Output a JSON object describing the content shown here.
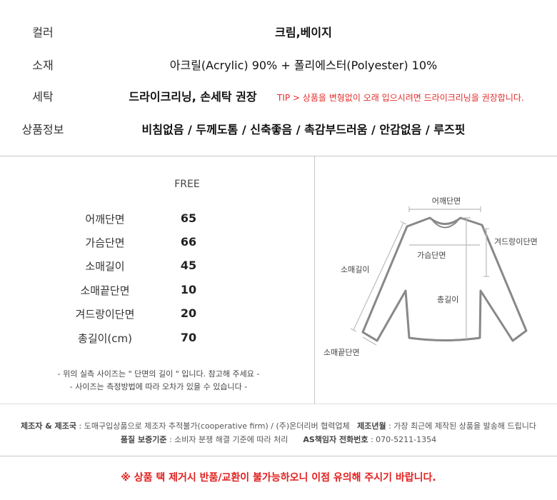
{
  "info": [
    {
      "label": "컬러",
      "value": "크림,베이지"
    },
    {
      "label": "소재",
      "value": "아크릴(Acrylic) 90% + 폴리에스터(Polyester) 10%"
    },
    {
      "label": "세탁",
      "value": "드라이크리닝, 손세탁 권장",
      "tip": "TIP > 상품을 변형없이 오래 입으시려면 드라이크리닝을 권장합니다."
    },
    {
      "label": "상품정보",
      "value": "비침없음 / 두께도톰 / 신축좋음 / 촉감부드러움 / 안감없음 / 루즈핏"
    }
  ],
  "size_table": {
    "header": "FREE",
    "rows": [
      {
        "label": "어깨단면",
        "value": "65"
      },
      {
        "label": "가슴단면",
        "value": "66"
      },
      {
        "label": "소매길이",
        "value": "45"
      },
      {
        "label": "소매끝단면",
        "value": "10"
      },
      {
        "label": "겨드랑이단면",
        "value": "20"
      },
      {
        "label": "총길이(cm)",
        "value": "70"
      }
    ],
    "notes": [
      "- 위의 실측 사이즈는 \" 단면의 길이 \" 입니다. 참고해 주세요 -",
      "- 사이즈는 측정방법에 따라 오차가 있을 수 있습니다 -"
    ]
  },
  "diagram": {
    "shoulder": "어깨단면",
    "armpit": "겨드랑이단면",
    "chest": "가슴단면",
    "sleeve": "소매길이",
    "length": "총길이",
    "cuff": "소매끝단면"
  },
  "footer": {
    "maker_label": "제조자 & 제조국",
    "maker_value": " : 도매구입상품으로 제조자 추적불가(cooperative firm) / (주)온더리버 협력업체",
    "date_label": "제조년월",
    "date_value": " : 가장 최근에 제작된 상품을 발송해 드립니다",
    "quality_label": "품질 보증기준",
    "quality_value": " : 소비자 분쟁 해결 기준에 따라 처리",
    "as_label": "AS책임자 전화번호",
    "as_value": " : 070-5211-1354"
  },
  "notice": "※ 상품 택 제거시 반품/교환이 불가능하오니 이점 유의해 주시기 바랍니다.",
  "colors": {
    "tip": "#e52b2b",
    "notice": "#e0201e"
  }
}
